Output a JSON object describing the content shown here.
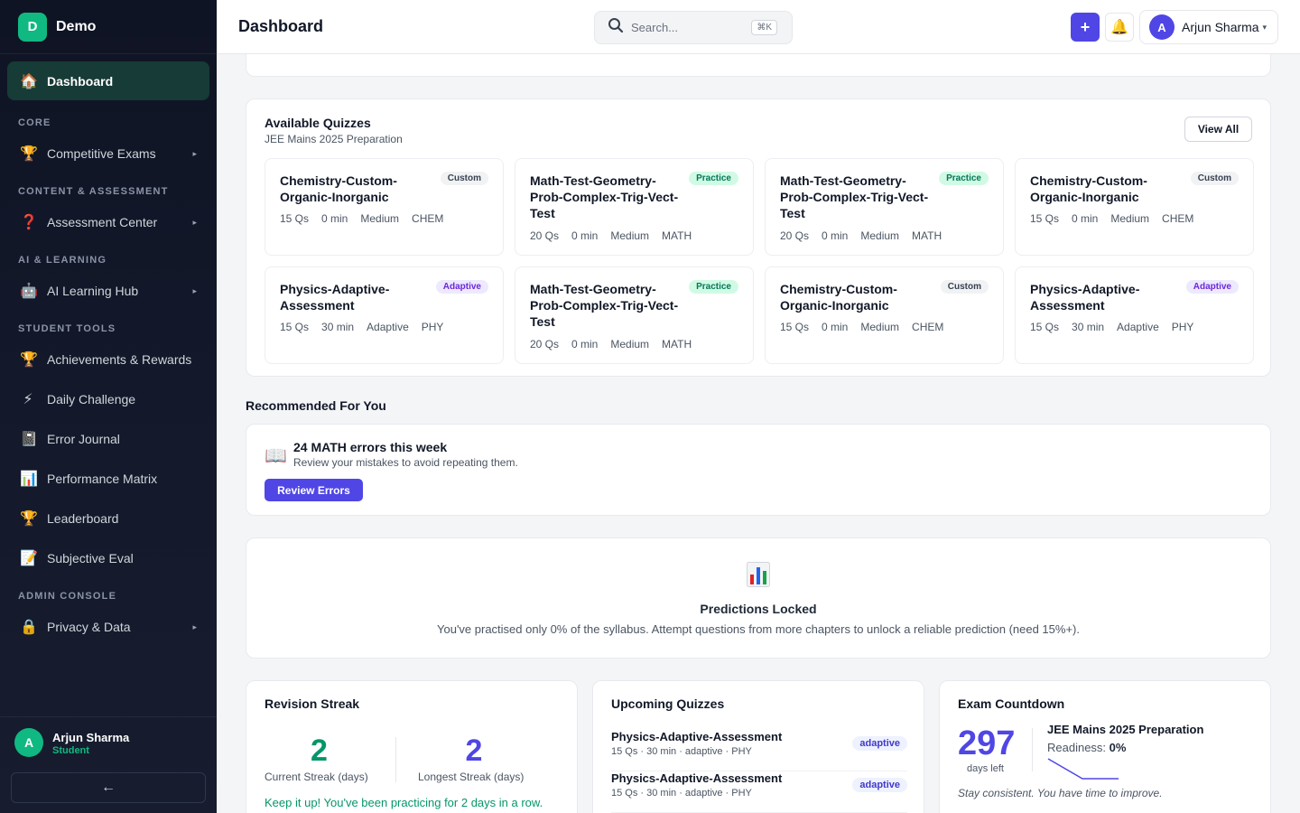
{
  "brand": {
    "logo_letter": "D",
    "name": "Demo"
  },
  "sidebar": {
    "active": {
      "label": "Dashboard",
      "icon": "🏠"
    },
    "sections": {
      "core": "CORE",
      "content": "CONTENT & ASSESSMENT",
      "ai": "AI & LEARNING",
      "student": "STUDENT TOOLS",
      "admin": "ADMIN CONSOLE"
    },
    "items": {
      "competitive_exams": {
        "label": "Competitive Exams",
        "icon": "🏆"
      },
      "assessment_center": {
        "label": "Assessment Center",
        "icon": "❓"
      },
      "ai_learning_hub": {
        "label": "AI Learning Hub",
        "icon": "🤖"
      },
      "achievements": {
        "label": "Achievements & Rewards",
        "icon": "🏆"
      },
      "daily_challenge": {
        "label": "Daily Challenge",
        "icon": "⚡"
      },
      "error_journal": {
        "label": "Error Journal",
        "icon": "📓"
      },
      "performance_matrix": {
        "label": "Performance Matrix",
        "icon": "📊"
      },
      "leaderboard": {
        "label": "Leaderboard",
        "icon": "🏆"
      },
      "subjective_eval": {
        "label": "Subjective Eval",
        "icon": "📝"
      },
      "privacy": {
        "label": "Privacy & Data",
        "icon": "🔒"
      }
    },
    "caret": "▸",
    "user": {
      "initial": "A",
      "name": "Arjun Sharma",
      "role": "Student"
    },
    "collapse_icon": "←"
  },
  "header": {
    "title": "Dashboard",
    "search_placeholder": "Search...",
    "search_shortcut": "⌘K",
    "add_icon": "+",
    "bell_icon": "🔔",
    "profile": {
      "initial": "A",
      "name": "Arjun Sharma",
      "caret": "▾"
    }
  },
  "quizzes": {
    "title": "Available Quizzes",
    "subtitle": "JEE Mains 2025 Preparation",
    "view_all": "View All",
    "cards": [
      {
        "name": "Chemistry-Custom-Organic-Inorganic",
        "badge": "Custom",
        "qs": "15 Qs",
        "time": "0 min",
        "level": "Medium",
        "subject": "CHEM"
      },
      {
        "name": "Math-Test-Geometry-Prob-Complex-Trig-Vect-Test",
        "badge": "Practice",
        "qs": "20 Qs",
        "time": "0 min",
        "level": "Medium",
        "subject": "MATH"
      },
      {
        "name": "Math-Test-Geometry-Prob-Complex-Trig-Vect-Test",
        "badge": "Practice",
        "qs": "20 Qs",
        "time": "0 min",
        "level": "Medium",
        "subject": "MATH"
      },
      {
        "name": "Chemistry-Custom-Organic-Inorganic",
        "badge": "Custom",
        "qs": "15 Qs",
        "time": "0 min",
        "level": "Medium",
        "subject": "CHEM"
      },
      {
        "name": "Physics-Adaptive-Assessment",
        "badge": "Adaptive",
        "qs": "15 Qs",
        "time": "30 min",
        "level": "Adaptive",
        "subject": "PHY"
      },
      {
        "name": "Math-Test-Geometry-Prob-Complex-Trig-Vect-Test",
        "badge": "Practice",
        "qs": "20 Qs",
        "time": "0 min",
        "level": "Medium",
        "subject": "MATH"
      },
      {
        "name": "Chemistry-Custom-Organic-Inorganic",
        "badge": "Custom",
        "qs": "15 Qs",
        "time": "0 min",
        "level": "Medium",
        "subject": "CHEM"
      },
      {
        "name": "Physics-Adaptive-Assessment",
        "badge": "Adaptive",
        "qs": "15 Qs",
        "time": "30 min",
        "level": "Adaptive",
        "subject": "PHY"
      }
    ]
  },
  "recommended": {
    "section_title": "Recommended For You",
    "icon": "📖",
    "headline": "24 MATH errors this week",
    "text": "Review your mistakes to avoid repeating them.",
    "button": "Review Errors"
  },
  "predictions": {
    "icon": "bar-chart-icon",
    "title": "Predictions Locked",
    "text": "You've practised only 0% of the syllabus. Attempt questions from more chapters to unlock a reliable prediction (need 15%+)."
  },
  "streak": {
    "title": "Revision Streak",
    "current": "2",
    "current_label": "Current Streak (days)",
    "longest": "2",
    "longest_label": "Longest Streak (days)",
    "note": "Keep it up! You've been practicing for 2 days in a row."
  },
  "upcoming": {
    "title": "Upcoming Quizzes",
    "items": [
      {
        "name": "Physics-Adaptive-Assessment",
        "meta": "15 Qs · 30 min · adaptive · PHY",
        "badge": "adaptive"
      },
      {
        "name": "Physics-Adaptive-Assessment",
        "meta": "15 Qs · 30 min · adaptive · PHY",
        "badge": "adaptive"
      }
    ]
  },
  "countdown": {
    "title": "Exam Countdown",
    "days": "297",
    "days_label": "days left",
    "goal": "JEE Mains 2025 Preparation",
    "readiness_label": "Readiness:",
    "readiness_value": "0%",
    "note": "Stay consistent. You have time to improve."
  }
}
